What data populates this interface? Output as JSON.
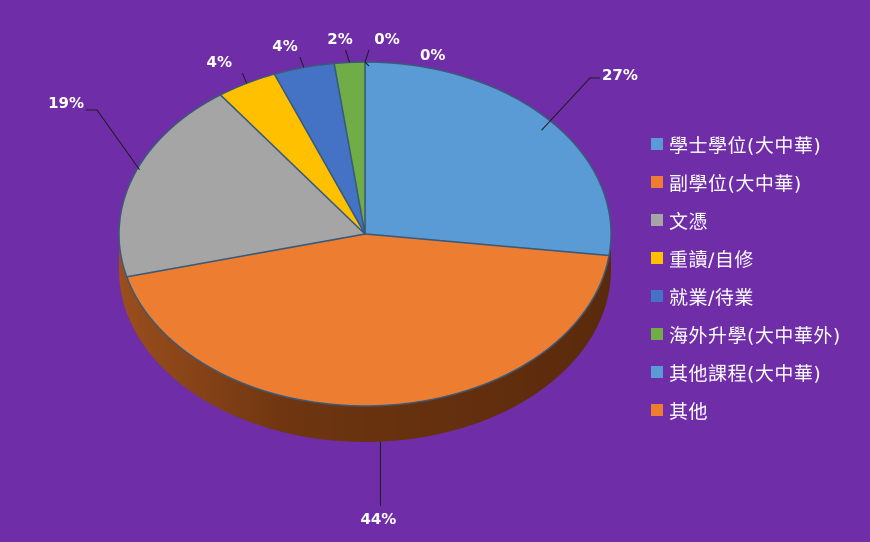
{
  "colors": {
    "background": "#6f2da8"
  },
  "chart_data": {
    "type": "pie",
    "title": "",
    "legend_position": "right",
    "categories": [
      "學士學位(大中華)",
      "副學位(大中華)",
      "文憑",
      "重讀/自修",
      "就業/待業",
      "海外升學(大中華外)",
      "其他課程(大中華)",
      "其他"
    ],
    "values": [
      27,
      44,
      19,
      4,
      4,
      2,
      0,
      0
    ],
    "value_labels": [
      "27%",
      "44%",
      "19%",
      "4%",
      "4%",
      "2%",
      "0%",
      "0%"
    ],
    "colors": [
      "#5b9bd5",
      "#ed7d31",
      "#a5a5a5",
      "#ffc000",
      "#4472c4",
      "#70ad47",
      "#5b9bd5",
      "#ed7d31"
    ]
  }
}
